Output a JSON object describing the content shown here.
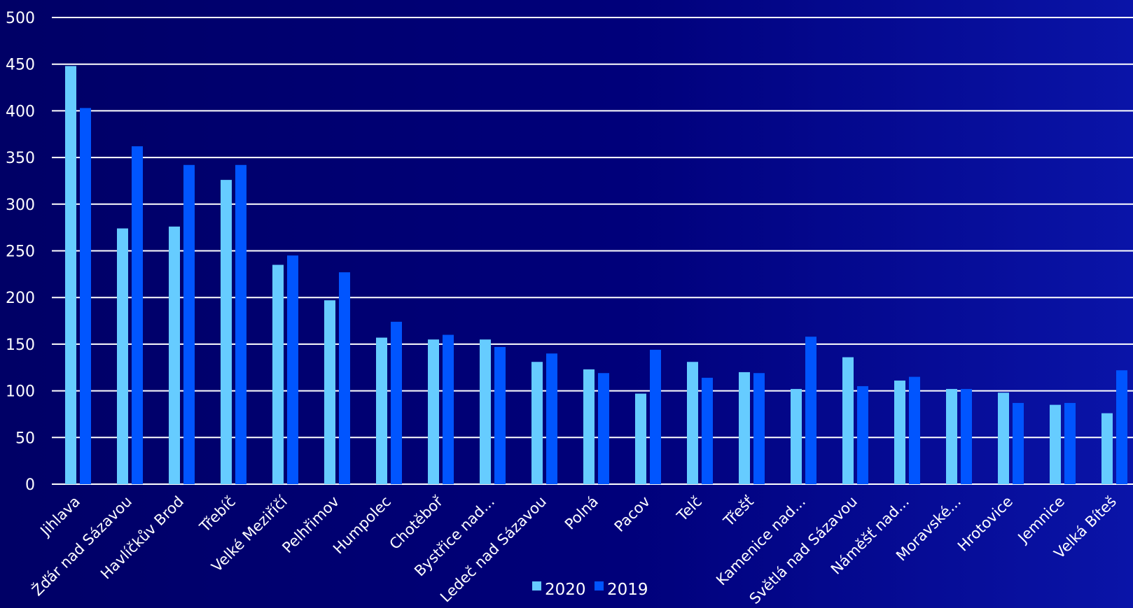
{
  "chart_data": {
    "type": "bar",
    "title": "",
    "xlabel": "",
    "ylabel": "",
    "ylim": [
      0,
      500
    ],
    "yticks": [
      0,
      50,
      100,
      150,
      200,
      250,
      300,
      350,
      400,
      450,
      500
    ],
    "grid": true,
    "legend_position": "bottom",
    "categories": [
      "Jihlava",
      "Žďár nad Sázavou",
      "Havlíčkův Brod",
      "Třebíč",
      "Velké Meziříčí",
      "Pelhřimov",
      "Humpolec",
      "Chotěboř",
      "Bystřice nad...",
      "Ledeč nad Sázavou",
      "Polná",
      "Pacov",
      "Telč",
      "Třešť",
      "Kamenice nad...",
      "Světlá nad Sázavou",
      "Náměšť nad...",
      "Moravské...",
      "Hrotovice",
      "Jemnice",
      "Velká Bíteš"
    ],
    "series": [
      {
        "name": "2020",
        "color": "#66ccff",
        "values": [
          448,
          274,
          276,
          326,
          235,
          197,
          157,
          155,
          155,
          131,
          123,
          97,
          131,
          120,
          102,
          136,
          111,
          102,
          98,
          85,
          76
        ]
      },
      {
        "name": "2019",
        "color": "#0055ff",
        "values": [
          403,
          362,
          342,
          342,
          245,
          227,
          174,
          160,
          147,
          140,
          119,
          144,
          114,
          119,
          158,
          105,
          115,
          102,
          87,
          87,
          122
        ]
      }
    ]
  },
  "colors": {
    "background_left": "#000066",
    "background_right": "#0a14a8",
    "gridline": "#ffffff",
    "text": "#ffffff"
  }
}
